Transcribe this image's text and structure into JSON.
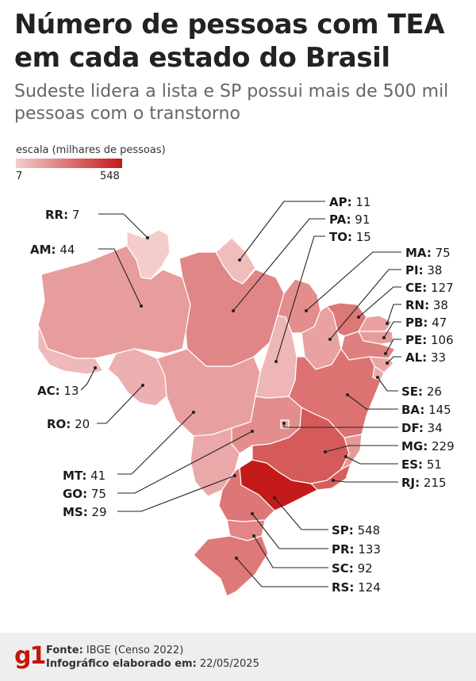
{
  "title": "Número de pessoas com TEA em cada estado do Brasil",
  "subtitle": "Sudeste lidera a lista e SP possui mais de 500 mil pessoas com o transtorno",
  "scale": {
    "label": "escala (milhares de pessoas)",
    "min": "7",
    "max": "548",
    "color_min": "#f4cccc",
    "color_max": "#c41a1a"
  },
  "states": [
    {
      "code": "RR",
      "value": 7
    },
    {
      "code": "AM",
      "value": 44
    },
    {
      "code": "AC",
      "value": 13
    },
    {
      "code": "RO",
      "value": 20
    },
    {
      "code": "MT",
      "value": 41
    },
    {
      "code": "GO",
      "value": 75
    },
    {
      "code": "MS",
      "value": 29
    },
    {
      "code": "AP",
      "value": 11
    },
    {
      "code": "PA",
      "value": 91
    },
    {
      "code": "TO",
      "value": 15
    },
    {
      "code": "MA",
      "value": 75
    },
    {
      "code": "PI",
      "value": 38
    },
    {
      "code": "CE",
      "value": 127
    },
    {
      "code": "RN",
      "value": 38
    },
    {
      "code": "PB",
      "value": 47
    },
    {
      "code": "PE",
      "value": 106
    },
    {
      "code": "AL",
      "value": 33
    },
    {
      "code": "SE",
      "value": 26
    },
    {
      "code": "BA",
      "value": 145
    },
    {
      "code": "DF",
      "value": 34
    },
    {
      "code": "MG",
      "value": 229
    },
    {
      "code": "ES",
      "value": 51
    },
    {
      "code": "RJ",
      "value": 215
    },
    {
      "code": "SP",
      "value": 548
    },
    {
      "code": "PR",
      "value": 133
    },
    {
      "code": "SC",
      "value": 92
    },
    {
      "code": "RS",
      "value": 124
    }
  ],
  "footer": {
    "logo": "g1",
    "source_label": "Fonte:",
    "source_value": "IBGE (Censo 2022)",
    "date_label": "Infográfico elaborado em:",
    "date_value": "22/05/2025"
  }
}
